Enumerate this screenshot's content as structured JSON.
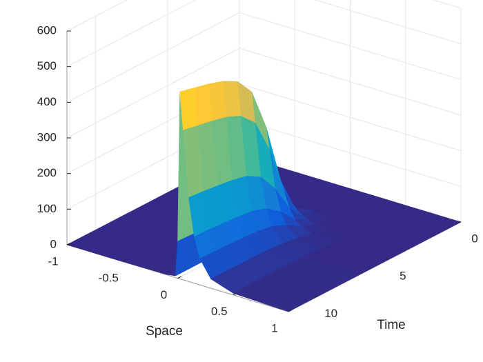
{
  "chart_data": {
    "type": "surface",
    "xlabel": "Space",
    "ylabel": "Time",
    "x": [
      -1,
      -0.5,
      -0.1,
      -0.02,
      0,
      0.02,
      0.05,
      0.1,
      0.15,
      0.2,
      0.3,
      0.5,
      1
    ],
    "y": [
      0,
      1,
      2,
      3,
      4,
      5,
      6,
      7,
      8,
      9,
      10,
      11,
      12
    ],
    "z": [
      [
        0,
        0,
        0,
        0,
        0,
        0,
        0,
        0,
        0,
        0,
        0,
        0,
        0
      ],
      [
        0,
        0,
        0,
        0,
        0,
        0,
        0,
        0,
        0,
        0,
        0,
        0,
        0
      ],
      [
        0,
        0,
        0,
        0,
        0,
        1,
        1,
        0,
        0,
        0,
        0,
        0,
        0
      ],
      [
        0,
        0,
        0,
        0,
        1,
        5,
        4,
        2,
        1,
        1,
        0,
        0,
        0
      ],
      [
        0,
        0,
        0,
        0,
        6,
        30,
        24,
        14,
        8,
        4,
        2,
        0,
        0
      ],
      [
        0,
        0,
        0,
        1,
        26,
        130,
        104,
        59,
        33,
        18,
        7,
        1,
        0
      ],
      [
        0,
        0,
        0,
        3,
        60,
        300,
        240,
        135,
        75,
        42,
        15,
        3,
        0
      ],
      [
        0,
        0,
        0,
        4,
        84,
        420,
        336,
        189,
        105,
        59,
        21,
        4,
        0
      ],
      [
        0,
        0,
        0,
        5,
        94,
        470,
        376,
        212,
        118,
        66,
        24,
        5,
        0
      ],
      [
        0,
        0,
        0,
        5,
        98,
        492,
        394,
        221,
        123,
        69,
        25,
        5,
        0
      ],
      [
        0,
        0,
        1,
        5,
        101,
        505,
        404,
        227,
        126,
        71,
        25,
        5,
        0
      ],
      [
        0,
        0,
        1,
        5,
        103,
        515,
        412,
        232,
        129,
        72,
        26,
        5,
        0
      ],
      [
        0,
        0,
        1,
        5,
        105,
        525,
        420,
        236,
        131,
        74,
        26,
        5,
        0
      ]
    ],
    "xlim": [
      -1,
      1
    ],
    "ylim": [
      0,
      12
    ],
    "zlim": [
      0,
      600
    ],
    "xticks": [
      -1,
      -0.5,
      0,
      0.5,
      1
    ],
    "yticks": [
      0,
      5,
      10
    ],
    "zticks": [
      0,
      100,
      200,
      300,
      400,
      500,
      600
    ],
    "grid": true,
    "colormap": [
      "#352a87",
      "#0f5cdd",
      "#1481d6",
      "#06a4ca",
      "#2eb7a4",
      "#87bf77",
      "#d1bb59",
      "#fec832",
      "#f9fb0e"
    ]
  }
}
